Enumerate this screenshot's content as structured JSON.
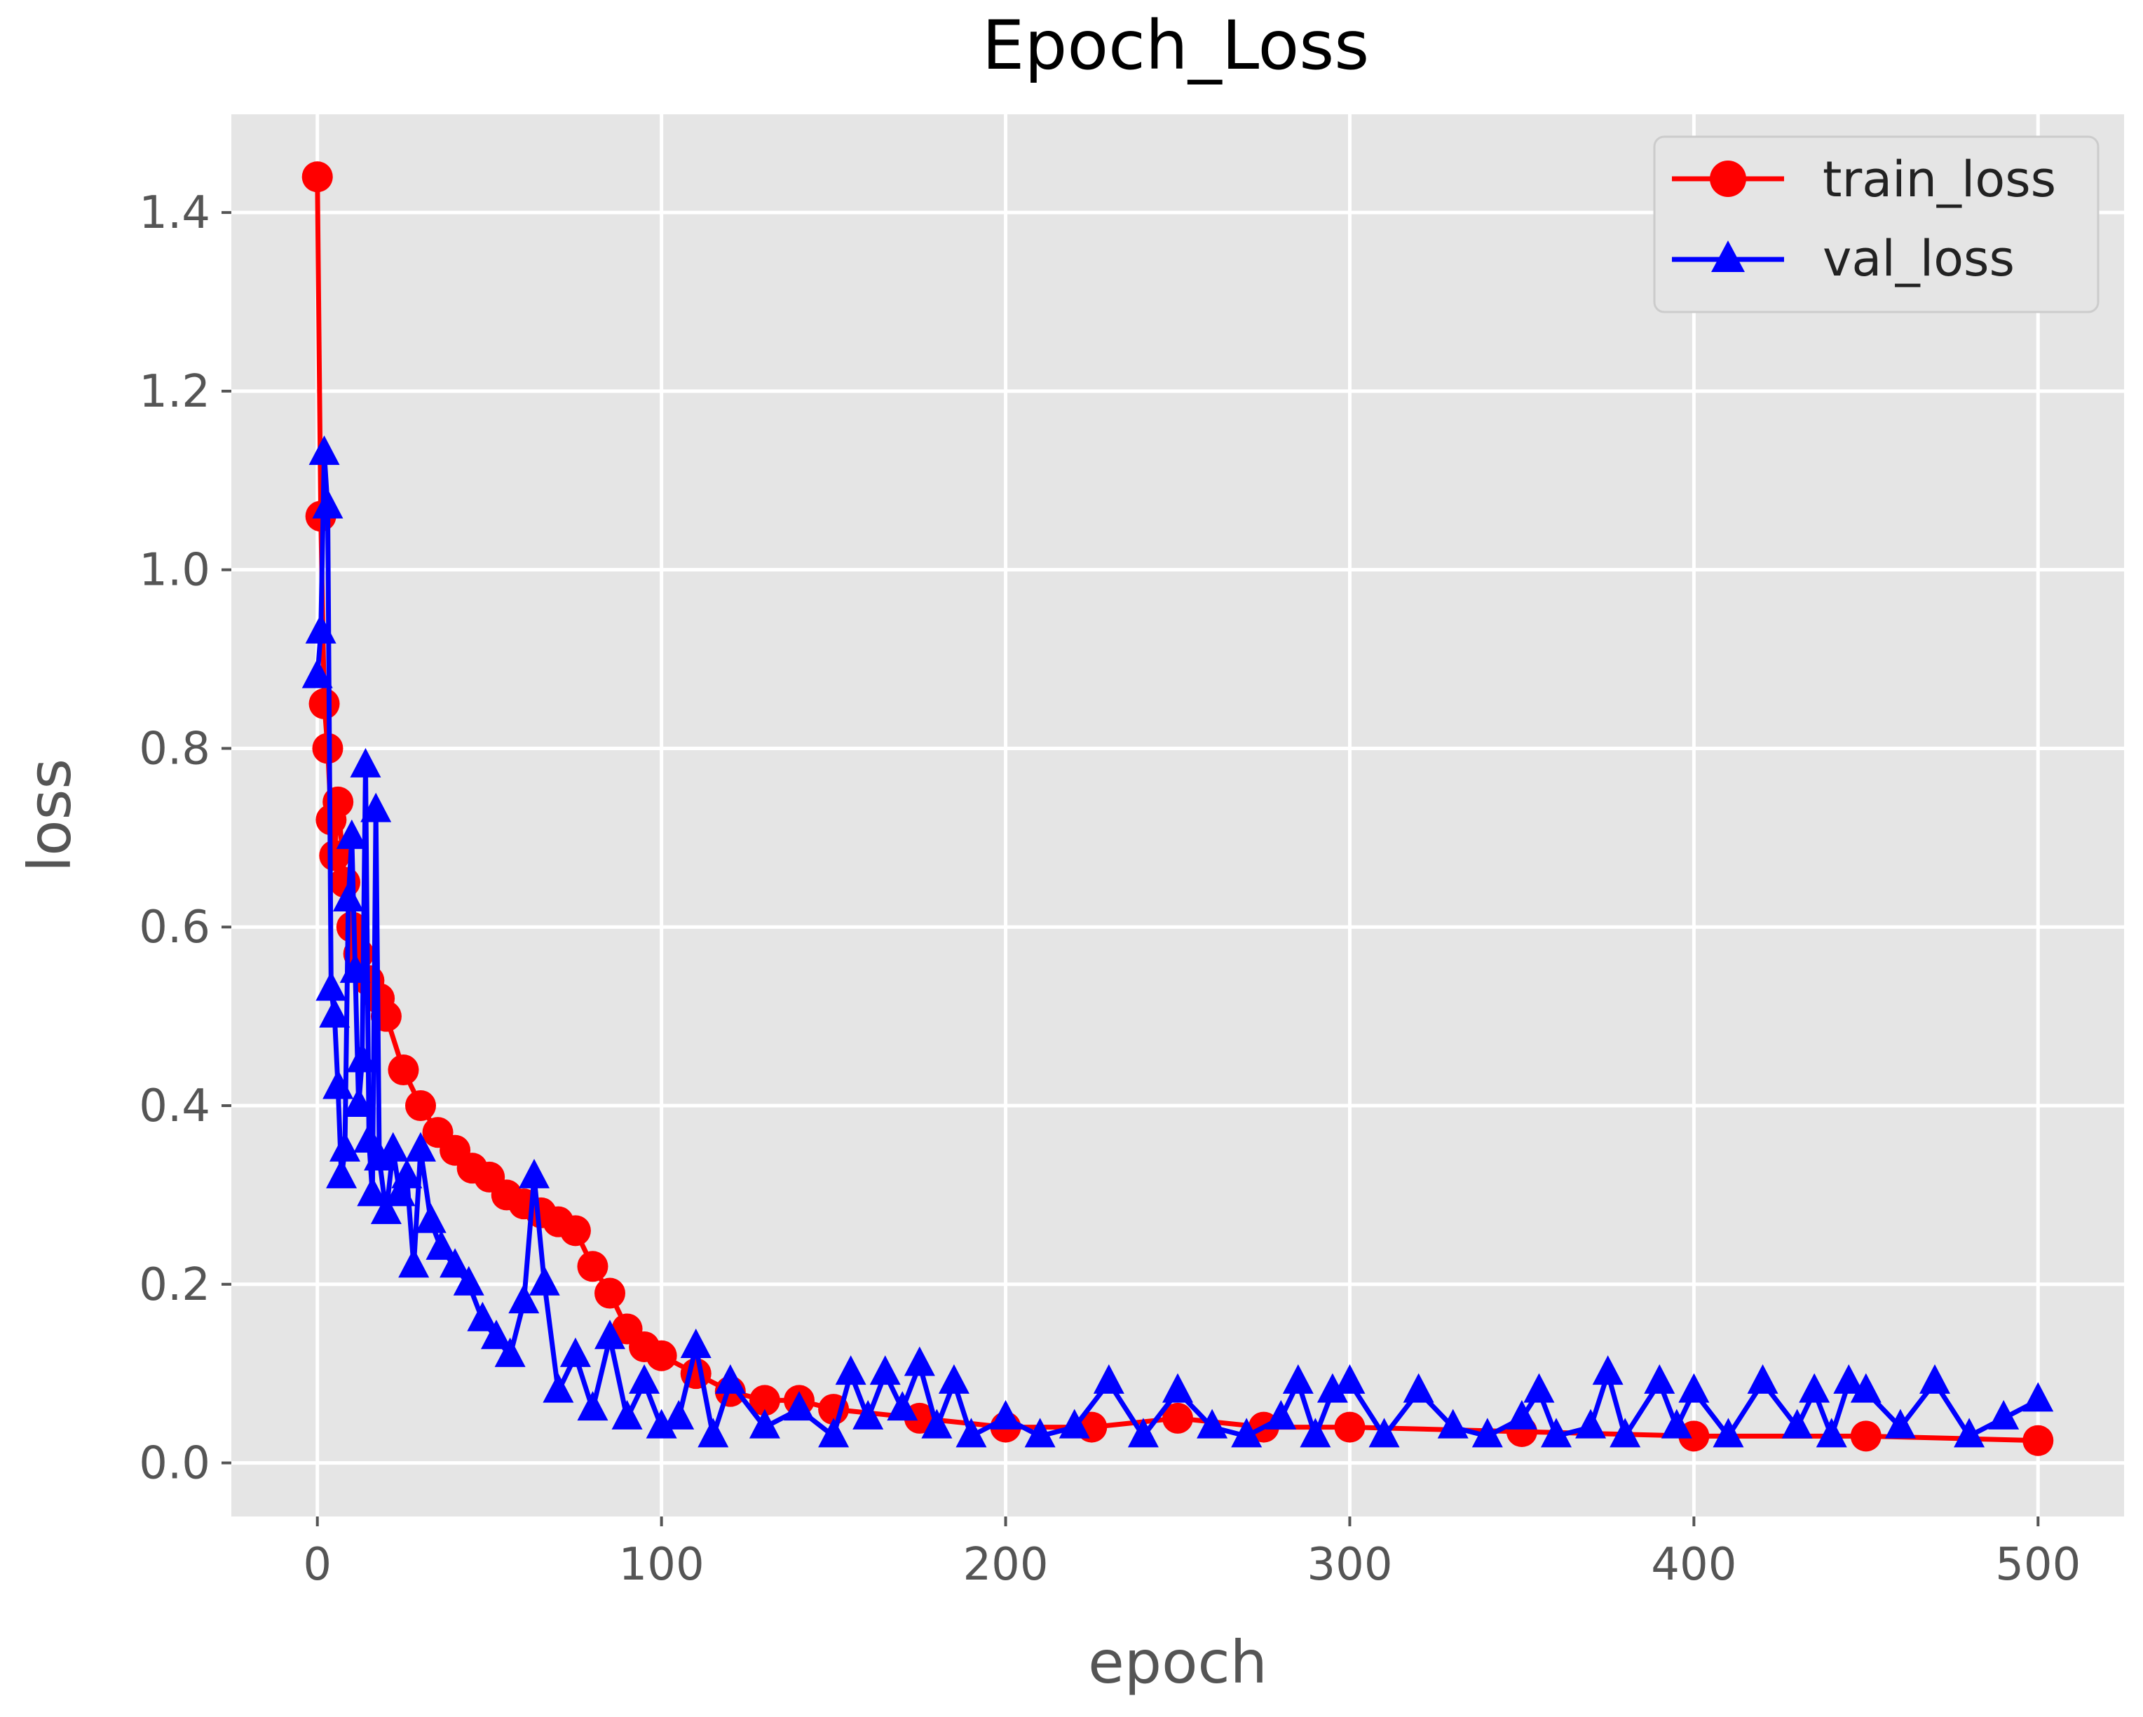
{
  "chart_data": {
    "type": "line",
    "title": "Epoch_Loss",
    "xlabel": "epoch",
    "ylabel": "loss",
    "xlim": [
      -25,
      525
    ],
    "ylim": [
      -0.06,
      1.51
    ],
    "xticks": [
      0,
      100,
      200,
      300,
      400,
      500
    ],
    "yticks": [
      0.0,
      0.2,
      0.4,
      0.6,
      0.8,
      1.0,
      1.2,
      1.4
    ],
    "xtick_labels": [
      "0",
      "100",
      "200",
      "300",
      "400",
      "500"
    ],
    "ytick_labels": [
      "0.0",
      "0.2",
      "0.4",
      "0.6",
      "0.8",
      "1.0",
      "1.2",
      "1.4"
    ],
    "grid": true,
    "legend_position": "top-right",
    "series": [
      {
        "name": "train_loss",
        "color": "#ff0000",
        "marker": "circle",
        "x": [
          0,
          1,
          2,
          3,
          4,
          5,
          6,
          8,
          10,
          12,
          15,
          18,
          20,
          25,
          30,
          35,
          40,
          45,
          50,
          55,
          60,
          65,
          70,
          75,
          80,
          85,
          90,
          95,
          100,
          110,
          120,
          130,
          140,
          150,
          175,
          200,
          225,
          250,
          275,
          300,
          350,
          400,
          450,
          500
        ],
        "y": [
          1.44,
          1.06,
          0.85,
          0.8,
          0.72,
          0.68,
          0.74,
          0.65,
          0.6,
          0.57,
          0.54,
          0.52,
          0.5,
          0.44,
          0.4,
          0.37,
          0.35,
          0.33,
          0.32,
          0.3,
          0.29,
          0.28,
          0.27,
          0.26,
          0.22,
          0.19,
          0.15,
          0.13,
          0.12,
          0.1,
          0.08,
          0.07,
          0.07,
          0.06,
          0.05,
          0.04,
          0.04,
          0.05,
          0.04,
          0.04,
          0.035,
          0.03,
          0.03,
          0.025
        ]
      },
      {
        "name": "val_loss",
        "color": "#0000ff",
        "marker": "triangle",
        "x": [
          0,
          1,
          2,
          3,
          4,
          5,
          6,
          7,
          8,
          9,
          10,
          11,
          12,
          13,
          14,
          15,
          16,
          17,
          18,
          20,
          22,
          24,
          26,
          28,
          30,
          33,
          36,
          40,
          44,
          48,
          52,
          56,
          60,
          63,
          66,
          70,
          75,
          80,
          85,
          90,
          95,
          100,
          105,
          110,
          115,
          120,
          130,
          140,
          150,
          155,
          160,
          165,
          170,
          175,
          180,
          185,
          190,
          200,
          210,
          220,
          230,
          240,
          250,
          260,
          270,
          280,
          285,
          290,
          295,
          300,
          310,
          320,
          330,
          340,
          350,
          355,
          360,
          370,
          375,
          380,
          390,
          395,
          400,
          410,
          420,
          430,
          435,
          440,
          445,
          450,
          460,
          470,
          480,
          490,
          500
        ],
        "y": [
          0.88,
          0.93,
          1.13,
          1.07,
          0.53,
          0.5,
          0.42,
          0.32,
          0.35,
          0.63,
          0.7,
          0.55,
          0.4,
          0.45,
          0.78,
          0.36,
          0.3,
          0.73,
          0.34,
          0.28,
          0.35,
          0.3,
          0.32,
          0.22,
          0.35,
          0.27,
          0.24,
          0.22,
          0.2,
          0.16,
          0.14,
          0.12,
          0.18,
          0.32,
          0.2,
          0.08,
          0.12,
          0.06,
          0.14,
          0.05,
          0.09,
          0.04,
          0.05,
          0.13,
          0.03,
          0.09,
          0.04,
          0.06,
          0.03,
          0.1,
          0.05,
          0.1,
          0.06,
          0.11,
          0.04,
          0.09,
          0.03,
          0.05,
          0.03,
          0.04,
          0.09,
          0.03,
          0.08,
          0.04,
          0.03,
          0.05,
          0.09,
          0.03,
          0.08,
          0.09,
          0.03,
          0.08,
          0.04,
          0.03,
          0.05,
          0.08,
          0.03,
          0.04,
          0.1,
          0.03,
          0.09,
          0.04,
          0.08,
          0.03,
          0.09,
          0.04,
          0.08,
          0.03,
          0.09,
          0.08,
          0.04,
          0.09,
          0.03,
          0.05,
          0.07
        ]
      }
    ]
  }
}
